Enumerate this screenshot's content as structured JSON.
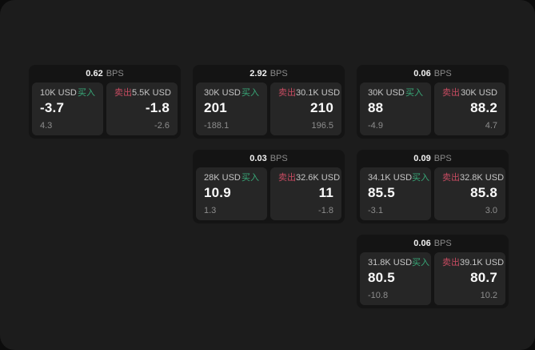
{
  "labels": {
    "bps_suffix": "BPS",
    "buy": "买入",
    "sell": "卖出"
  },
  "colors": {
    "buy": "#38a878",
    "sell": "#c74b61",
    "surface": "#1c1c1c",
    "card": "#141414",
    "panel": "#262626"
  },
  "cards": [
    {
      "row": 1,
      "col": 1,
      "bps": "0.62",
      "buy_size": "10K USD",
      "buy_price": "-3.7",
      "buy_delta": "4.3",
      "sell_size": "5.5K USD",
      "sell_price": "-1.8",
      "sell_delta": "-2.6"
    },
    {
      "row": 1,
      "col": 2,
      "bps": "2.92",
      "buy_size": "30K USD",
      "buy_price": "201",
      "buy_delta": "-188.1",
      "sell_size": "30.1K USD",
      "sell_price": "210",
      "sell_delta": "196.5"
    },
    {
      "row": 1,
      "col": 3,
      "bps": "0.06",
      "buy_size": "30K USD",
      "buy_price": "88",
      "buy_delta": "-4.9",
      "sell_size": "30K USD",
      "sell_price": "88.2",
      "sell_delta": "4.7"
    },
    {
      "row": 2,
      "col": 2,
      "bps": "0.03",
      "buy_size": "28K USD",
      "buy_price": "10.9",
      "buy_delta": "1.3",
      "sell_size": "32.6K USD",
      "sell_price": "11",
      "sell_delta": "-1.8"
    },
    {
      "row": 2,
      "col": 3,
      "bps": "0.09",
      "buy_size": "34.1K USD",
      "buy_price": "85.5",
      "buy_delta": "-3.1",
      "sell_size": "32.8K USD",
      "sell_price": "85.8",
      "sell_delta": "3.0"
    },
    {
      "row": 3,
      "col": 3,
      "bps": "0.06",
      "buy_size": "31.8K USD",
      "buy_price": "80.5",
      "buy_delta": "-10.8",
      "sell_size": "39.1K USD",
      "sell_price": "80.7",
      "sell_delta": "10.2"
    }
  ]
}
